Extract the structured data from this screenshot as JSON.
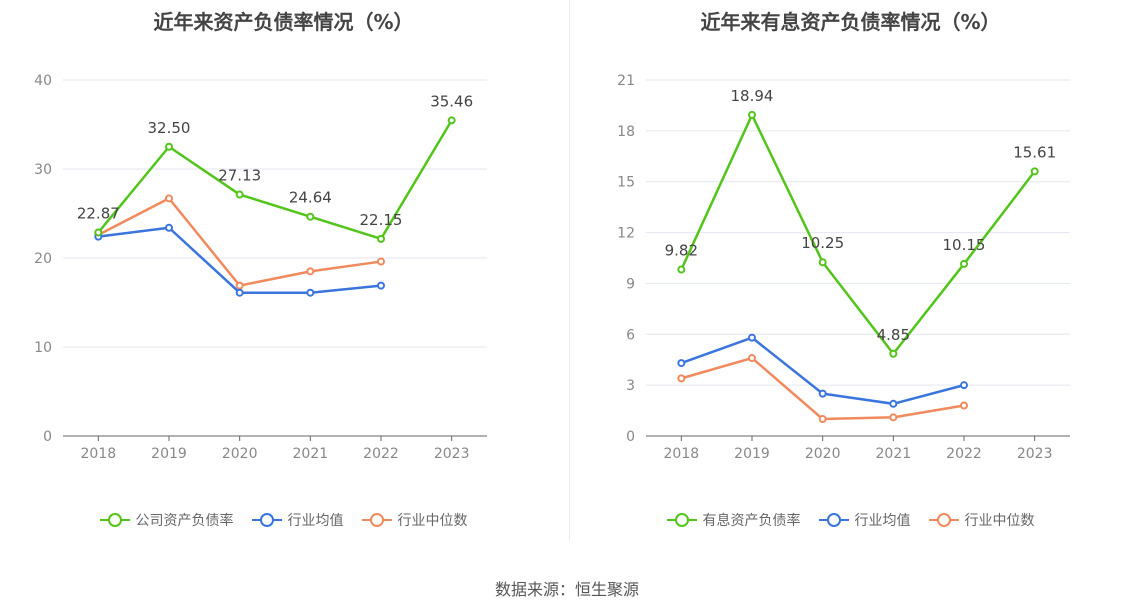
{
  "source": "数据来源：恒生聚源",
  "chart_data": [
    {
      "type": "line",
      "title": "近年来资产负债率情况（%）",
      "categories": [
        "2018",
        "2019",
        "2020",
        "2021",
        "2022",
        "2023"
      ],
      "ylim": [
        0,
        40
      ],
      "yticks": [
        0,
        10,
        20,
        30,
        40
      ],
      "grid": true,
      "legend_placement": "bottom",
      "series": [
        {
          "name": "公司资产负债率",
          "color": "#52c41a",
          "values": [
            22.87,
            32.5,
            27.13,
            24.64,
            22.15,
            35.46
          ],
          "labels": [
            "22.87",
            "32.50",
            "27.13",
            "24.64",
            "22.15",
            "35.46"
          ]
        },
        {
          "name": "行业均值",
          "color": "#3a75dd",
          "values": [
            22.4,
            23.4,
            16.1,
            16.1,
            16.9,
            null
          ]
        },
        {
          "name": "行业中位数",
          "color": "#f08a5d",
          "values": [
            22.6,
            26.7,
            16.9,
            18.5,
            19.6,
            null
          ]
        }
      ]
    },
    {
      "type": "line",
      "title": "近年来有息资产负债率情况（%）",
      "categories": [
        "2018",
        "2019",
        "2020",
        "2021",
        "2022",
        "2023"
      ],
      "ylim": [
        0,
        21
      ],
      "yticks": [
        0,
        3,
        6,
        9,
        12,
        15,
        18,
        21
      ],
      "grid": true,
      "legend_placement": "bottom",
      "series": [
        {
          "name": "有息资产负债率",
          "color": "#52c41a",
          "values": [
            9.82,
            18.94,
            10.25,
            4.85,
            10.15,
            15.61
          ],
          "labels": [
            "9.82",
            "18.94",
            "10.25",
            "4.85",
            "10.15",
            "15.61"
          ]
        },
        {
          "name": "行业均值",
          "color": "#3a75dd",
          "values": [
            4.3,
            5.8,
            2.5,
            1.9,
            3.0,
            null
          ]
        },
        {
          "name": "行业中位数",
          "color": "#f08a5d",
          "values": [
            3.4,
            4.6,
            1.0,
            1.1,
            1.8,
            null
          ]
        }
      ]
    }
  ]
}
